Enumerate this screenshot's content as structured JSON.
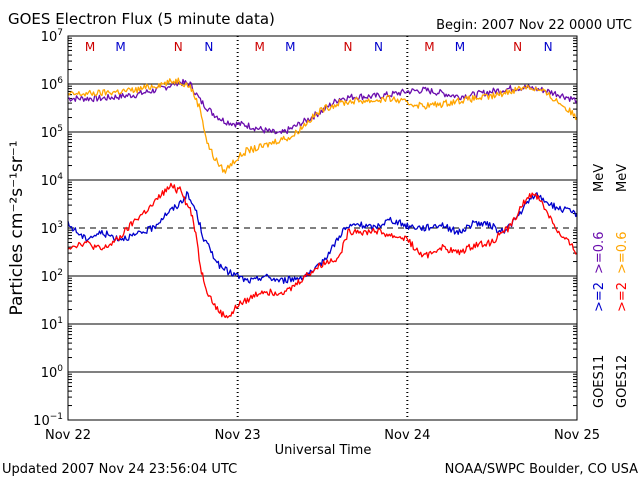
{
  "chart_data": {
    "type": "line",
    "title": "GOES Electron Flux (5 minute data)",
    "begin_label": "Begin: 2007 Nov 22 0000 UTC",
    "xlabel": "Universal Time",
    "ylabel": "Particles cm⁻²s⁻¹sr⁻¹",
    "y_scale": "log",
    "ylim": [
      0.1,
      10000000
    ],
    "y_tick_labels": [
      {
        "base": "10",
        "exp": "7",
        "value": 10000000
      },
      {
        "base": "10",
        "exp": "6",
        "value": 1000000
      },
      {
        "base": "10",
        "exp": "5",
        "value": 100000
      },
      {
        "base": "10",
        "exp": "4",
        "value": 10000
      },
      {
        "base": "10",
        "exp": "3",
        "value": 1000
      },
      {
        "base": "10",
        "exp": "2",
        "value": 100
      },
      {
        "base": "10",
        "exp": "1",
        "value": 10
      },
      {
        "base": "10",
        "exp": "0",
        "value": 1
      },
      {
        "base": "10",
        "exp": "−1",
        "value": 0.1
      }
    ],
    "x_tick_labels": [
      "Nov 22",
      "Nov 23",
      "Nov 24",
      "Nov 25"
    ],
    "xlim_days": [
      0,
      3
    ],
    "reference_lines": [
      {
        "value": 1000000,
        "style": "solid"
      },
      {
        "value": 100000,
        "style": "solid"
      },
      {
        "value": 10000,
        "style": "solid"
      },
      {
        "value": 1000,
        "style": "dashed"
      },
      {
        "value": 100,
        "style": "solid"
      },
      {
        "value": 10,
        "style": "solid"
      },
      {
        "value": 1,
        "style": "solid"
      }
    ],
    "grid": "day boundaries dashed",
    "markers": [
      {
        "label": "M",
        "day": 0.13,
        "color": "#cc0000"
      },
      {
        "label": "M",
        "day": 0.31,
        "color": "#0000cc"
      },
      {
        "label": "N",
        "day": 0.65,
        "color": "#cc0000"
      },
      {
        "label": "N",
        "day": 0.83,
        "color": "#0000cc"
      },
      {
        "label": "M",
        "day": 1.13,
        "color": "#cc0000"
      },
      {
        "label": "M",
        "day": 1.31,
        "color": "#0000cc"
      },
      {
        "label": "N",
        "day": 1.65,
        "color": "#cc0000"
      },
      {
        "label": "N",
        "day": 1.83,
        "color": "#0000cc"
      },
      {
        "label": "M",
        "day": 2.13,
        "color": "#cc0000"
      },
      {
        "label": "M",
        "day": 2.31,
        "color": "#0000cc"
      },
      {
        "label": "N",
        "day": 2.65,
        "color": "#cc0000"
      },
      {
        "label": "N",
        "day": 2.83,
        "color": "#0000cc"
      }
    ],
    "legend": {
      "position": "right",
      "goes11_label": "GOES11",
      "goes12_label": "GOES12",
      "g11_e2_label": ">=2",
      "g11_e06_label": ">=0.6",
      "g12_e2_label": ">=2",
      "g12_e06_label": ">=0.6",
      "unit": "MeV"
    },
    "series": [
      {
        "name": "GOES11 >=0.6 MeV",
        "color": "#6a0dad",
        "x": [
          0.0,
          0.2,
          0.4,
          0.55,
          0.65,
          0.72,
          0.78,
          0.85,
          0.92,
          0.98,
          1.05,
          1.15,
          1.25,
          1.32,
          1.4,
          1.5,
          1.6,
          1.7,
          1.8,
          1.9,
          2.0,
          2.1,
          2.2,
          2.3,
          2.4,
          2.5,
          2.6,
          2.7,
          2.8,
          2.9,
          3.0
        ],
        "values": [
          500000,
          500000,
          600000,
          800000,
          1100000,
          1000000,
          450000,
          250000,
          170000,
          150000,
          140000,
          110000,
          90000,
          120000,
          170000,
          280000,
          500000,
          550000,
          550000,
          600000,
          700000,
          750000,
          650000,
          550000,
          600000,
          700000,
          800000,
          850000,
          750000,
          600000,
          450000
        ]
      },
      {
        "name": "GOES12 >=0.6 MeV",
        "color": "#ffa500",
        "x": [
          0.0,
          0.2,
          0.4,
          0.55,
          0.65,
          0.72,
          0.78,
          0.82,
          0.86,
          0.92,
          0.98,
          1.05,
          1.15,
          1.25,
          1.32,
          1.4,
          1.5,
          1.6,
          1.7,
          1.8,
          1.9,
          2.0,
          2.1,
          2.2,
          2.3,
          2.4,
          2.5,
          2.6,
          2.7,
          2.8,
          2.9,
          3.0
        ],
        "values": [
          600000,
          650000,
          750000,
          1000000,
          1200000,
          900000,
          300000,
          60000,
          30000,
          15000,
          25000,
          40000,
          50000,
          70000,
          80000,
          150000,
          300000,
          400000,
          450000,
          450000,
          500000,
          400000,
          350000,
          380000,
          450000,
          500000,
          550000,
          700000,
          900000,
          700000,
          400000,
          200000
        ]
      },
      {
        "name": "GOES11 >=2 MeV",
        "color": "#0000cc",
        "x": [
          0.0,
          0.1,
          0.2,
          0.3,
          0.4,
          0.5,
          0.58,
          0.65,
          0.7,
          0.75,
          0.8,
          0.85,
          0.9,
          0.95,
          1.0,
          1.05,
          1.1,
          1.15,
          1.25,
          1.35,
          1.45,
          1.55,
          1.62,
          1.7,
          1.8,
          1.9,
          2.0,
          2.1,
          2.2,
          2.3,
          2.4,
          2.5,
          2.55,
          2.6,
          2.65,
          2.7,
          2.75,
          2.8,
          2.85,
          2.9,
          3.0
        ],
        "values": [
          1200,
          600,
          800,
          600,
          700,
          1000,
          2000,
          3000,
          5000,
          2500,
          600,
          300,
          150,
          120,
          100,
          80,
          80,
          100,
          80,
          90,
          120,
          350,
          900,
          1200,
          1000,
          1500,
          1100,
          1000,
          1200,
          800,
          1300,
          1100,
          800,
          1100,
          1700,
          3000,
          5000,
          4000,
          3000,
          2500,
          2000
        ]
      },
      {
        "name": "GOES12 >=2 MeV",
        "color": "#ff0000",
        "x": [
          0.0,
          0.1,
          0.2,
          0.3,
          0.4,
          0.5,
          0.55,
          0.6,
          0.62,
          0.64,
          0.66,
          0.68,
          0.7,
          0.72,
          0.74,
          0.76,
          0.78,
          0.82,
          0.85,
          0.88,
          0.92,
          0.96,
          1.0,
          1.05,
          1.1,
          1.15,
          1.2,
          1.3,
          1.4,
          1.5,
          1.6,
          1.65,
          1.7,
          1.75,
          1.8,
          1.9,
          2.0,
          2.05,
          2.1,
          2.2,
          2.3,
          2.4,
          2.5,
          2.55,
          2.6,
          2.65,
          2.7,
          2.75,
          2.8,
          2.85,
          2.9,
          2.95,
          3.0
        ],
        "values": [
          400,
          500,
          350,
          600,
          1500,
          3000,
          5000,
          7000,
          8000,
          6000,
          7500,
          5000,
          3000,
          2500,
          1300,
          600,
          150,
          50,
          30,
          20,
          15,
          15,
          25,
          30,
          40,
          50,
          45,
          50,
          100,
          180,
          250,
          800,
          900,
          800,
          900,
          700,
          600,
          350,
          250,
          400,
          300,
          450,
          500,
          800,
          1000,
          2000,
          4000,
          5500,
          3000,
          1500,
          700,
          500,
          300
        ]
      }
    ]
  },
  "footer": {
    "updated": "Updated 2007 Nov 24 23:56:04 UTC",
    "source": "NOAA/SWPC Boulder, CO USA"
  }
}
